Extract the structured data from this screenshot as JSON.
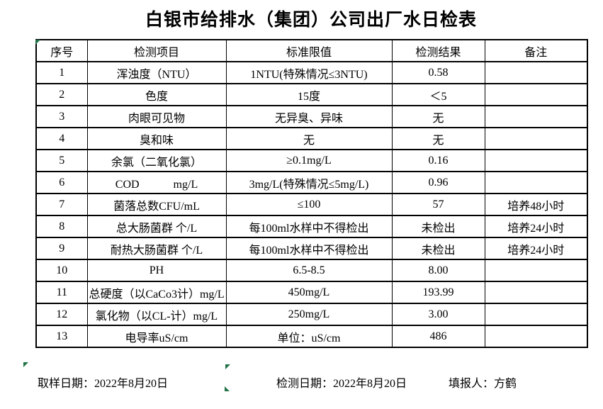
{
  "title": "白银市给排水（集团）公司出厂水日检表",
  "table": {
    "headers": [
      "序号",
      "检测项目",
      "标准限值",
      "检测结果",
      "备注"
    ],
    "rows": [
      {
        "no": "1",
        "item": "浑浊度（NTU）",
        "limit": "1NTU(特殊情况≤3NTU)",
        "result": "0.58",
        "note": ""
      },
      {
        "no": "2",
        "item": "色度",
        "limit": "15度",
        "result": "＜5",
        "note": ""
      },
      {
        "no": "3",
        "item": "肉眼可见物",
        "limit": "无异臭、异味",
        "result": "无",
        "note": ""
      },
      {
        "no": "4",
        "item": "臭和味",
        "limit": "无",
        "result": "无",
        "note": ""
      },
      {
        "no": "5",
        "item": "余氯（二氧化氯）",
        "limit": "≥0.1mg/L",
        "result": "0.16",
        "note": ""
      },
      {
        "no": "6",
        "item": "COD　　　mg/L",
        "limit": "3mg/L(特殊情况≤5mg/L)",
        "result": "0.96",
        "note": ""
      },
      {
        "no": "7",
        "item": "菌落总数CFU/mL",
        "limit": "≤100",
        "result": "57",
        "note": "培养48小时"
      },
      {
        "no": "8",
        "item": "总大肠菌群 个/L",
        "limit": "每100ml水样中不得检出",
        "result": "未检出",
        "note": "培养24小时"
      },
      {
        "no": "9",
        "item": "耐热大肠菌群 个/L",
        "limit": "每100ml水样中不得检出",
        "result": "未检出",
        "note": "培养24小时"
      },
      {
        "no": "10",
        "item": "PH",
        "limit": "6.5-8.5",
        "result": "8.00",
        "note": ""
      },
      {
        "no": "11",
        "item": "总硬度（以CaCo3计）mg/L",
        "limit": "450mg/L",
        "result": "193.99",
        "note": ""
      },
      {
        "no": "12",
        "item": "氯化物（以CL-计）mg/L",
        "limit": "250mg/L",
        "result": "3.00",
        "note": ""
      },
      {
        "no": "13",
        "item": "电导率uS/cm",
        "limit": "单位：uS/cm",
        "result": "486",
        "note": ""
      }
    ]
  },
  "footer": {
    "sampling": "取样日期：2022年8月20日",
    "testing": "检测日期：2022年8月20日",
    "reporter": "填报人：方鹤"
  },
  "colors": {
    "border-color": "#000000",
    "marker-green": "#217346",
    "bg": "#ffffff",
    "text": "#000000"
  }
}
